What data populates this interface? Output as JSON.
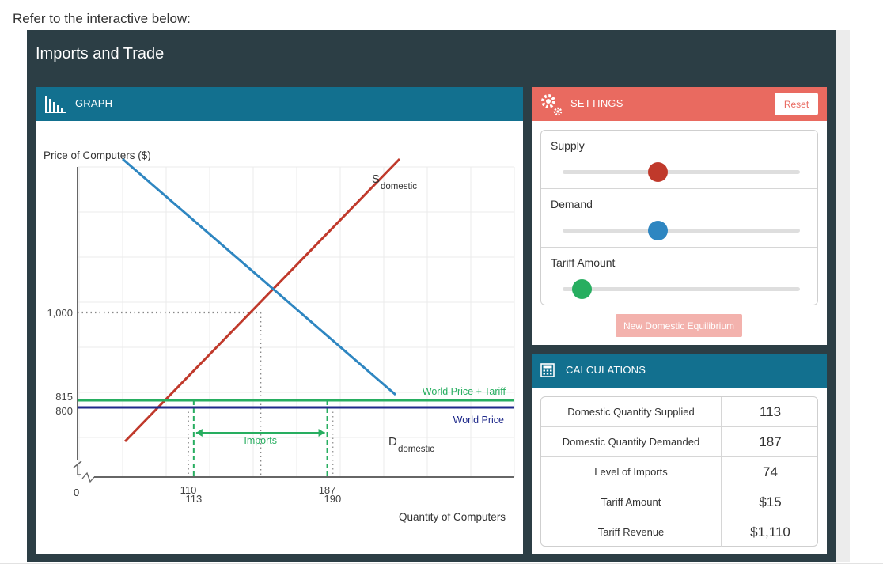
{
  "prompt": "Refer to the interactive below:",
  "widget": {
    "title": "Imports and Trade"
  },
  "graph": {
    "header": "GRAPH",
    "icon": "bar-chart-icon"
  },
  "settings": {
    "header": "SETTINGS",
    "icon": "gear-icon",
    "reset_label": "Reset",
    "sliders": [
      {
        "label": "Supply",
        "level": 0.4,
        "color": "#c0392b"
      },
      {
        "label": "Demand",
        "level": 0.4,
        "color": "#2e86c1"
      },
      {
        "label": "Tariff Amount",
        "level": 0.08,
        "color": "#27ae60"
      }
    ],
    "new_equilibrium_label": "New Domestic Equilibrium"
  },
  "calculations": {
    "header": "CALCULATIONS",
    "icon": "calculator-icon",
    "rows": [
      {
        "name": "Domestic Quantity Supplied",
        "value": "113"
      },
      {
        "name": "Domestic Quantity Demanded",
        "value": "187"
      },
      {
        "name": "Level of Imports",
        "value": "74"
      },
      {
        "name": "Tariff Amount",
        "value": "$15"
      },
      {
        "name": "Tariff Revenue",
        "value": "$1,110"
      }
    ]
  },
  "chart_data": {
    "type": "line",
    "ylabel": "Price of Computers ($)",
    "xlabel": "Quantity of Computers",
    "origin_label": "0",
    "y_ticks": [
      {
        "value": 1000,
        "label": "1,000"
      },
      {
        "value": 815,
        "label": "815"
      },
      {
        "value": 800,
        "label": "800"
      }
    ],
    "x_ticks": [
      {
        "value": 110,
        "label": "110"
      },
      {
        "value": 113,
        "label": "113"
      },
      {
        "value": 187,
        "label": "187"
      },
      {
        "value": 190,
        "label": "190"
      }
    ],
    "series": [
      {
        "name": "S",
        "subscript": "domestic",
        "color": "#c0392b",
        "points": [
          [
            47,
            738
          ],
          [
            250,
            1605
          ]
        ]
      },
      {
        "name": "D",
        "subscript": "domestic",
        "color": "#2e86c1",
        "points": [
          [
            47,
            1605
          ],
          [
            250,
            738
          ]
        ]
      }
    ],
    "world_price": {
      "label": "World Price",
      "value": 800,
      "color": "#1f2a8a"
    },
    "world_price_tariff": {
      "label": "World Price + Tariff",
      "value": 815,
      "color": "#27ae60"
    },
    "equilibrium": {
      "quantity": 150,
      "price": 1000
    },
    "imports_label": "Imports",
    "imports_range": [
      113,
      187
    ],
    "grid": true
  }
}
